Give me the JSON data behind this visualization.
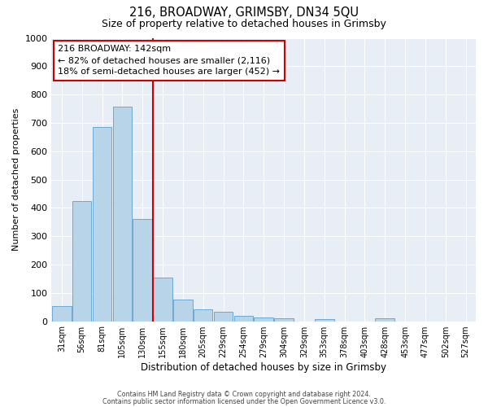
{
  "title": "216, BROADWAY, GRIMSBY, DN34 5QU",
  "subtitle": "Size of property relative to detached houses in Grimsby",
  "xlabel": "Distribution of detached houses by size in Grimsby",
  "ylabel": "Number of detached properties",
  "bar_labels": [
    "31sqm",
    "56sqm",
    "81sqm",
    "105sqm",
    "130sqm",
    "155sqm",
    "180sqm",
    "205sqm",
    "229sqm",
    "254sqm",
    "279sqm",
    "304sqm",
    "329sqm",
    "353sqm",
    "378sqm",
    "403sqm",
    "428sqm",
    "453sqm",
    "477sqm",
    "502sqm",
    "527sqm"
  ],
  "bar_values": [
    52,
    425,
    685,
    757,
    362,
    155,
    76,
    42,
    32,
    20,
    13,
    11,
    0,
    8,
    0,
    0,
    10,
    0,
    0,
    0,
    0
  ],
  "bar_color": "#b8d4e8",
  "bar_edge_color": "#6aaad4",
  "bar_width": 0.95,
  "vline_x": 4.5,
  "vline_color": "#cc0000",
  "ylim": [
    0,
    1000
  ],
  "yticks": [
    0,
    100,
    200,
    300,
    400,
    500,
    600,
    700,
    800,
    900,
    1000
  ],
  "annotation_title": "216 BROADWAY: 142sqm",
  "annotation_line1": "← 82% of detached houses are smaller (2,116)",
  "annotation_line2": "18% of semi-detached houses are larger (452) →",
  "annotation_box_facecolor": "#ffffff",
  "annotation_box_edgecolor": "#cc0000",
  "fig_facecolor": "#ffffff",
  "ax_facecolor": "#e8eef5",
  "grid_color": "#ffffff",
  "footer1": "Contains HM Land Registry data © Crown copyright and database right 2024.",
  "footer2": "Contains public sector information licensed under the Open Government Licence v3.0."
}
